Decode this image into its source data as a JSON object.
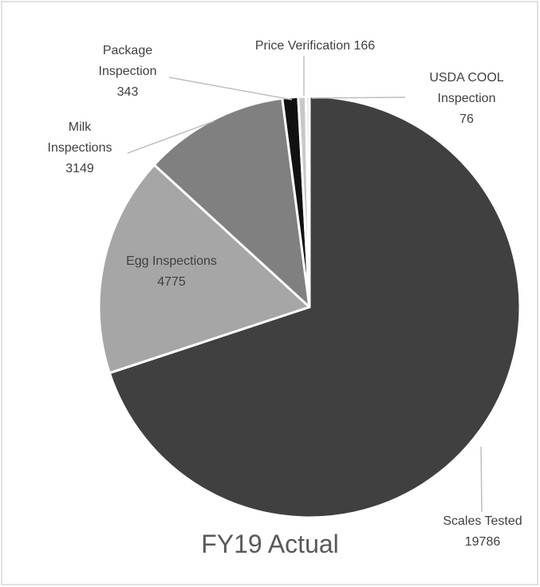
{
  "chart_data": {
    "type": "pie",
    "title": "FY19 Actual",
    "categories": [
      "Scales Tested",
      "Egg Inspections",
      "Milk Inspections",
      "Package Inspection",
      "Price Verification",
      "USDA COOL Inspection"
    ],
    "values": [
      19786,
      4775,
      3149,
      343,
      166,
      76
    ],
    "colors": [
      "#404040",
      "#a6a6a6",
      "#808080",
      "#111111",
      "#c8c8c8",
      "#e6e6e6"
    ]
  }
}
